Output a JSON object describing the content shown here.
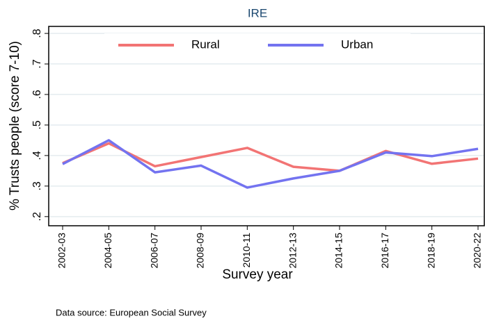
{
  "chart_data": {
    "type": "line",
    "title": "IRE",
    "x_label": "Survey year",
    "y_label": "% Trusts people (score 7-10)",
    "note": "Data source: European Social Survey",
    "categories": [
      "2002-03",
      "2004-05",
      "2006-07",
      "2008-09",
      "2010-11",
      "2012-13",
      "2014-15",
      "2016-17",
      "2018-19",
      "2020-22"
    ],
    "series": [
      {
        "name": "Rural",
        "color": "#f27474",
        "values": [
          0.375,
          0.44,
          0.365,
          0.395,
          0.425,
          0.363,
          0.35,
          0.415,
          0.373,
          0.39
        ]
      },
      {
        "name": "Urban",
        "color": "#7373f0",
        "values": [
          0.372,
          0.45,
          0.345,
          0.367,
          0.295,
          0.325,
          0.35,
          0.41,
          0.398,
          0.422
        ]
      }
    ],
    "ylim": [
      0.17,
      0.823
    ],
    "yticks": [
      {
        "value": 0.2,
        "label": ".2"
      },
      {
        "value": 0.3,
        "label": ".3"
      },
      {
        "value": 0.4,
        "label": ".4"
      },
      {
        "value": 0.5,
        "label": ".5"
      },
      {
        "value": 0.6,
        "label": ".6"
      },
      {
        "value": 0.7,
        "label": ".7"
      },
      {
        "value": 0.8,
        "label": ".8"
      }
    ],
    "grid": true,
    "legend_position": "top"
  }
}
